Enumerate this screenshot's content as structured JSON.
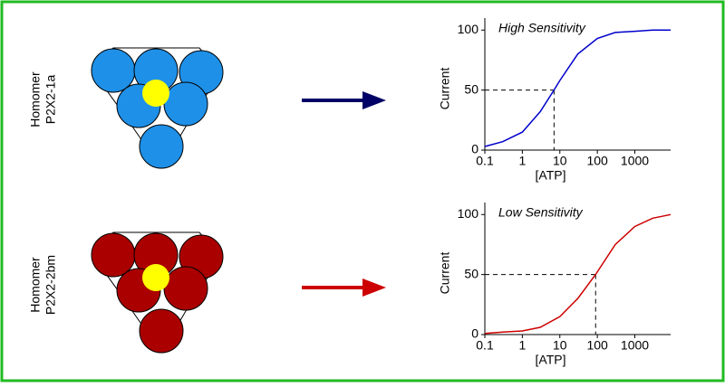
{
  "chart_data": [
    {
      "type": "line",
      "annotation": "High Sensitivity",
      "ylabel": "Current",
      "xlabel": "[ATP]",
      "xscale": "log",
      "x": [
        0.1,
        0.3,
        1,
        3,
        7,
        10,
        30,
        100,
        300,
        1000,
        3000,
        9000
      ],
      "series": [
        {
          "color": "#0000cc",
          "values": [
            3,
            7,
            15,
            32,
            50,
            58,
            80,
            93,
            98,
            99,
            100,
            100
          ]
        }
      ],
      "reference": {
        "x": 7,
        "y": 50
      },
      "xlim": [
        0.1,
        9000
      ],
      "xticks": [
        0.1,
        1,
        10,
        100,
        1000
      ],
      "ylim": [
        0,
        110
      ],
      "yticks": [
        0,
        50,
        100
      ]
    },
    {
      "type": "line",
      "annotation": "Low Sensitivity",
      "ylabel": "Current",
      "xlabel": "[ATP]",
      "xscale": "log",
      "x": [
        0.1,
        0.3,
        1,
        3,
        10,
        30,
        90,
        300,
        1000,
        3000,
        9000
      ],
      "series": [
        {
          "color": "#cc0000",
          "values": [
            1,
            2,
            3,
            6,
            15,
            30,
            50,
            75,
            90,
            97,
            100
          ]
        }
      ],
      "reference": {
        "x": 90,
        "y": 50
      },
      "xlim": [
        0.1,
        9000
      ],
      "xticks": [
        0.1,
        1,
        10,
        100,
        1000
      ],
      "ylim": [
        0,
        110
      ],
      "yticks": [
        0,
        50,
        100
      ]
    }
  ],
  "rows": [
    {
      "label": [
        "Homomer",
        "P2X2-1a"
      ]
    },
    {
      "label": [
        "Homomer",
        "P2X2-2bm"
      ]
    }
  ]
}
